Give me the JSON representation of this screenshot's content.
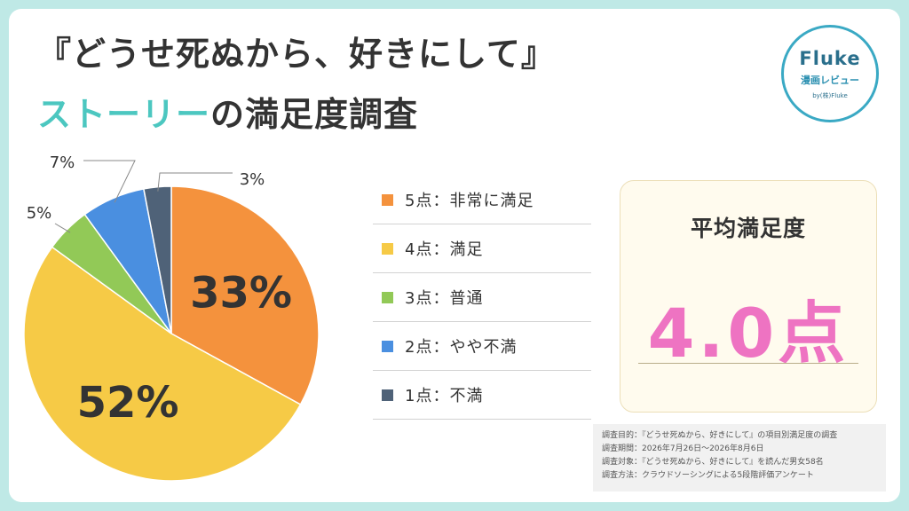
{
  "title": {
    "line1": "『どうせ死ぬから、好きにして』",
    "line2_accent": "ストーリー",
    "line2_rest": "の満足度調査"
  },
  "logo": {
    "brand": "Fluke",
    "sub": "漫画レビュー",
    "by": "by(株)Fluke"
  },
  "chart_data": {
    "type": "pie",
    "categories": [
      "5点：非常に満足",
      "4点：満足",
      "3点：普通",
      "2点：やや不満",
      "1点：不満"
    ],
    "values": [
      33,
      52,
      5,
      7,
      3
    ],
    "value_labels": [
      "33%",
      "52%",
      "5%",
      "7%",
      "3%"
    ],
    "colors": [
      "#f4923d",
      "#f6ca46",
      "#92c957",
      "#4a8fe0",
      "#4f6278"
    ],
    "legend_placement": "right"
  },
  "average": {
    "title": "平均満足度",
    "value": "4.0点"
  },
  "notes": [
    "調査目的：『どうせ死ぬから、好きにして』の項目別満足度の調査",
    "調査期間：2026年7月26日～2026年8月6日",
    "調査対象：『どうせ死ぬから、好きにして』を読んだ男女58名",
    "調査方法：クラウドソーシングによる5段階評価アンケート"
  ]
}
